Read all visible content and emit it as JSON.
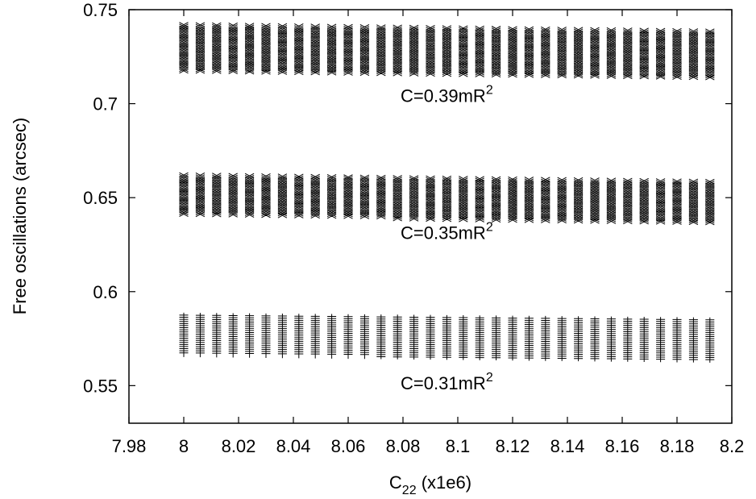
{
  "chart_data": {
    "type": "scatter",
    "xlabel": "C22 (x1e6)",
    "xlabel_main": "C",
    "xlabel_sub": "22",
    "xlabel_rest": " (x1e6)",
    "ylabel": "Free oscillations (arcsec)",
    "xlim": [
      7.98,
      8.2
    ],
    "ylim": [
      0.53,
      0.75
    ],
    "xticks": [
      7.98,
      8,
      8.02,
      8.04,
      8.06,
      8.08,
      8.1,
      8.12,
      8.14,
      8.16,
      8.18,
      8.2
    ],
    "xtick_labels": [
      "7.98",
      "8",
      "8.02",
      "8.04",
      "8.06",
      "8.08",
      "8.1",
      "8.12",
      "8.14",
      "8.16",
      "8.18",
      "8.2"
    ],
    "yticks": [
      0.55,
      0.6,
      0.65,
      0.7,
      0.75
    ],
    "ytick_labels": [
      "0.55",
      "0.6",
      "0.65",
      "0.7",
      "0.75"
    ],
    "grid": false,
    "x_start": 8.0,
    "x_step": 0.006,
    "x_count": 33,
    "series": [
      {
        "annotation": "C=0.39mR",
        "annotation_sup": "2",
        "annotation_x": 8.096,
        "annotation_y": 0.701,
        "marker": "x",
        "color": "#000000",
        "top": [
          0.742,
          0.7385
        ],
        "bottom": [
          0.717,
          0.7135
        ]
      },
      {
        "annotation": "C=0.35mR",
        "annotation_sup": "2",
        "annotation_x": 8.096,
        "annotation_y": 0.628,
        "marker": "x",
        "color": "#000000",
        "top": [
          0.662,
          0.6585
        ],
        "bottom": [
          0.6405,
          0.6365
        ]
      },
      {
        "annotation": "C=0.31mR",
        "annotation_sup": "2",
        "annotation_x": 8.096,
        "annotation_y": 0.548,
        "marker": "+",
        "color": "#000000",
        "top": [
          0.5875,
          0.585
        ],
        "bottom": [
          0.5665,
          0.5635
        ]
      }
    ]
  }
}
